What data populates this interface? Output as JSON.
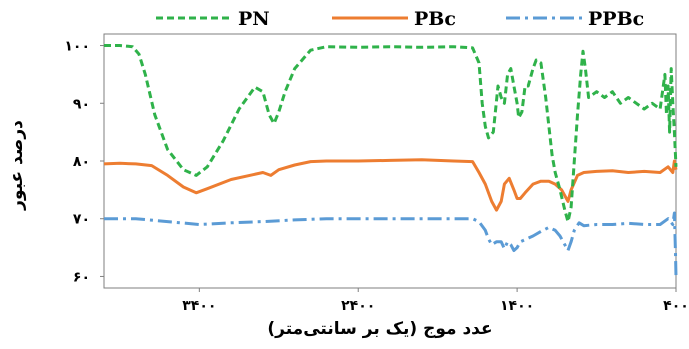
{
  "chart_data": {
    "type": "line",
    "xlabel": "عدد موج (یک بر سانتی‌متر)",
    "ylabel": "درصد عبور",
    "xlim": [
      4000,
      400
    ],
    "ylim": [
      58,
      102
    ],
    "x_ticks": [
      3400,
      2400,
      1400,
      400
    ],
    "x_tick_labels": [
      "۳۴۰۰",
      "۲۴۰۰",
      "۱۴۰۰",
      "۴۰۰"
    ],
    "y_ticks": [
      60,
      70,
      80,
      90,
      100
    ],
    "y_tick_labels": [
      "۶۰",
      "۷۰",
      "۸۰",
      "۹۰",
      "۱۰۰"
    ],
    "legend_position": "top",
    "grid": false,
    "series": [
      {
        "name": "PN",
        "color": "#2FB24A",
        "dash": "dashed",
        "points": [
          [
            4000,
            100
          ],
          [
            3900,
            100
          ],
          [
            3820,
            99.8
          ],
          [
            3780,
            98.5
          ],
          [
            3740,
            95
          ],
          [
            3680,
            88
          ],
          [
            3600,
            82
          ],
          [
            3500,
            78.5
          ],
          [
            3420,
            77.5
          ],
          [
            3350,
            79
          ],
          [
            3250,
            83.5
          ],
          [
            3150,
            89
          ],
          [
            3050,
            92.8
          ],
          [
            3000,
            92
          ],
          [
            2960,
            88
          ],
          [
            2930,
            86.5
          ],
          [
            2900,
            88.5
          ],
          [
            2860,
            92
          ],
          [
            2800,
            96
          ],
          [
            2700,
            99.2
          ],
          [
            2600,
            99.8
          ],
          [
            2400,
            99.7
          ],
          [
            2200,
            99.8
          ],
          [
            2000,
            99.7
          ],
          [
            1800,
            99.8
          ],
          [
            1680,
            99.6
          ],
          [
            1640,
            97
          ],
          [
            1620,
            90
          ],
          [
            1600,
            86
          ],
          [
            1580,
            84
          ],
          [
            1550,
            85
          ],
          [
            1520,
            93
          ],
          [
            1500,
            91
          ],
          [
            1480,
            90
          ],
          [
            1460,
            95
          ],
          [
            1440,
            96
          ],
          [
            1420,
            93
          ],
          [
            1400,
            90
          ],
          [
            1390,
            87.5
          ],
          [
            1370,
            88.5
          ],
          [
            1350,
            93
          ],
          [
            1330,
            93
          ],
          [
            1300,
            96
          ],
          [
            1280,
            97.5
          ],
          [
            1250,
            97
          ],
          [
            1220,
            91
          ],
          [
            1200,
            86
          ],
          [
            1180,
            81
          ],
          [
            1160,
            78
          ],
          [
            1130,
            75
          ],
          [
            1100,
            71.5
          ],
          [
            1080,
            69.5
          ],
          [
            1060,
            72
          ],
          [
            1040,
            80
          ],
          [
            1020,
            88
          ],
          [
            1000,
            95
          ],
          [
            985,
            99
          ],
          [
            970,
            96
          ],
          [
            950,
            91
          ],
          [
            900,
            92
          ],
          [
            850,
            91
          ],
          [
            800,
            92
          ],
          [
            750,
            90
          ],
          [
            700,
            91
          ],
          [
            650,
            90
          ],
          [
            600,
            89
          ],
          [
            550,
            90
          ],
          [
            500,
            89
          ],
          [
            480,
            93
          ],
          [
            470,
            95
          ],
          [
            460,
            88
          ],
          [
            450,
            93
          ],
          [
            440,
            85
          ],
          [
            430,
            96
          ],
          [
            420,
            90
          ],
          [
            410,
            85
          ],
          [
            400,
            79
          ]
        ]
      },
      {
        "name": "PBc",
        "color": "#ED7D31",
        "dash": "solid",
        "points": [
          [
            4000,
            79.5
          ],
          [
            3900,
            79.6
          ],
          [
            3800,
            79.5
          ],
          [
            3700,
            79.2
          ],
          [
            3600,
            77.5
          ],
          [
            3500,
            75.5
          ],
          [
            3420,
            74.5
          ],
          [
            3350,
            75.2
          ],
          [
            3200,
            76.8
          ],
          [
            3000,
            78
          ],
          [
            2950,
            77.5
          ],
          [
            2900,
            78.5
          ],
          [
            2800,
            79.3
          ],
          [
            2700,
            79.9
          ],
          [
            2600,
            80
          ],
          [
            2400,
            80
          ],
          [
            2200,
            80.1
          ],
          [
            2000,
            80.2
          ],
          [
            1800,
            80
          ],
          [
            1680,
            79.9
          ],
          [
            1640,
            78
          ],
          [
            1600,
            76
          ],
          [
            1560,
            73
          ],
          [
            1530,
            71.5
          ],
          [
            1500,
            73
          ],
          [
            1480,
            76
          ],
          [
            1450,
            77
          ],
          [
            1420,
            75
          ],
          [
            1400,
            73.5
          ],
          [
            1380,
            73.5
          ],
          [
            1350,
            74.5
          ],
          [
            1300,
            76
          ],
          [
            1250,
            76.5
          ],
          [
            1200,
            76.5
          ],
          [
            1160,
            76
          ],
          [
            1120,
            75
          ],
          [
            1100,
            74
          ],
          [
            1080,
            73
          ],
          [
            1060,
            75
          ],
          [
            1020,
            77.5
          ],
          [
            980,
            78
          ],
          [
            900,
            78.2
          ],
          [
            800,
            78.3
          ],
          [
            700,
            78
          ],
          [
            600,
            78.2
          ],
          [
            500,
            78
          ],
          [
            450,
            79
          ],
          [
            420,
            78
          ],
          [
            410,
            80
          ],
          [
            400,
            78.5
          ]
        ]
      },
      {
        "name": "PPBc",
        "color": "#5B9BD5",
        "dash": "dashdot",
        "points": [
          [
            4000,
            70
          ],
          [
            3800,
            70
          ],
          [
            3600,
            69.5
          ],
          [
            3400,
            69
          ],
          [
            3200,
            69.3
          ],
          [
            3000,
            69.5
          ],
          [
            2800,
            69.8
          ],
          [
            2600,
            70
          ],
          [
            2400,
            70
          ],
          [
            2200,
            70
          ],
          [
            2000,
            70
          ],
          [
            1800,
            70
          ],
          [
            1680,
            70
          ],
          [
            1640,
            69.5
          ],
          [
            1600,
            68
          ],
          [
            1580,
            66.5
          ],
          [
            1560,
            65.5
          ],
          [
            1530,
            66
          ],
          [
            1500,
            66
          ],
          [
            1480,
            64.8
          ],
          [
            1460,
            66
          ],
          [
            1440,
            65.5
          ],
          [
            1420,
            64.5
          ],
          [
            1400,
            65
          ],
          [
            1380,
            66
          ],
          [
            1340,
            66.5
          ],
          [
            1300,
            67
          ],
          [
            1250,
            67.8
          ],
          [
            1200,
            68.5
          ],
          [
            1160,
            68
          ],
          [
            1130,
            67
          ],
          [
            1100,
            65.5
          ],
          [
            1080,
            64.5
          ],
          [
            1060,
            66
          ],
          [
            1040,
            68
          ],
          [
            1010,
            69.3
          ],
          [
            980,
            68.8
          ],
          [
            900,
            69
          ],
          [
            800,
            69
          ],
          [
            700,
            69.2
          ],
          [
            600,
            69
          ],
          [
            500,
            69
          ],
          [
            450,
            70
          ],
          [
            420,
            69
          ],
          [
            410,
            71
          ],
          [
            403,
            64
          ],
          [
            400,
            60
          ]
        ]
      }
    ]
  }
}
